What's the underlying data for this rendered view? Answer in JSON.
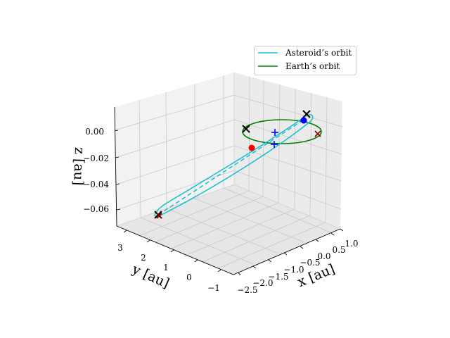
{
  "chart_data": {
    "type": "line",
    "projection": "3d",
    "xlabel": "x [au]",
    "ylabel": "y [au]",
    "zlabel": "z [au]",
    "xlim": [
      -2.5,
      1.0
    ],
    "ylim": [
      -1,
      3
    ],
    "zlim": [
      -0.07,
      0.005
    ],
    "grid": true,
    "legend_position": "top-right",
    "x_ticks": [
      "−2.5",
      "−2.0",
      "−1.5",
      "−1.0",
      "−0.5",
      "0.0",
      "0.5",
      "1.0"
    ],
    "y_ticks": [
      "−1",
      "0",
      "1",
      "2",
      "3"
    ],
    "z_ticks": [
      "0.00",
      "−0.02",
      "−0.04",
      "−0.06"
    ],
    "legend": [
      "Asteroid’s orbit",
      "Earth’s orbit"
    ],
    "series": [
      {
        "name": "Asteroid’s orbit",
        "style": "solid",
        "color": "#17becf",
        "note": "eccentric ellipse from near Earth's orbit out to about x=-2.3, y=3.1, z=-0.065"
      },
      {
        "name": "Earth’s orbit",
        "style": "solid",
        "color": "#008000",
        "note": "circle of radius 1 au in the z=0 plane"
      },
      {
        "name": "",
        "style": "dashed",
        "color": "#17becf",
        "note": "major axis of asteroid orbit"
      }
    ],
    "markers": [
      {
        "symbol": "x",
        "color": "#000000",
        "label": "",
        "x": 0.95,
        "y": 0.3,
        "z": 0.0
      },
      {
        "symbol": "x",
        "color": "#000000",
        "label": "",
        "x": -0.95,
        "y": -0.3,
        "z": 0.0
      },
      {
        "symbol": "x",
        "color": "#000000",
        "label": "",
        "x": -2.25,
        "y": 3.1,
        "z": -0.065
      },
      {
        "symbol": "x",
        "color": "#8b0000",
        "label": "",
        "x": 0.9,
        "y": -0.45,
        "z": 0.0
      },
      {
        "symbol": "x",
        "color": "#8b0000",
        "label": "",
        "x": -2.2,
        "y": 3.0,
        "z": -0.065
      },
      {
        "symbol": "dot",
        "color": "#ff0000",
        "label": "",
        "x": -0.6,
        "y": 0.8,
        "z": -0.005
      },
      {
        "symbol": "dot",
        "color": "#0000ff",
        "label": "",
        "x": 0.75,
        "y": 0.45,
        "z": 0.0
      },
      {
        "symbol": "+",
        "color": "#0000ff",
        "label": "",
        "x": 0.1,
        "y": 0.3,
        "z": 0.0
      },
      {
        "symbol": "+",
        "color": "#0000ff",
        "label": "",
        "x": -0.2,
        "y": 0.5,
        "z": -0.01
      }
    ]
  }
}
